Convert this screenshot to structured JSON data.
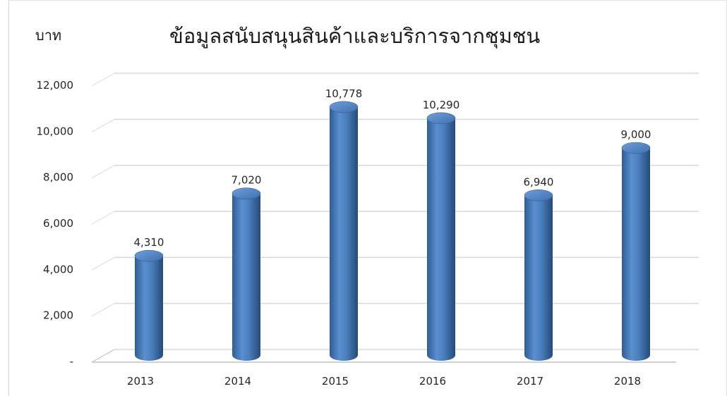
{
  "chart_data": {
    "type": "bar",
    "title": "ข้อมูลสนับสนุนสินค้าและบริการจากชุมชน",
    "ylabel": "บาท",
    "xlabel": "",
    "categories": [
      "2013",
      "2014",
      "2015",
      "2016",
      "2017",
      "2018"
    ],
    "values": [
      4310,
      7020,
      10778,
      10290,
      6940,
      9000
    ],
    "data_labels": [
      "4,310",
      "7,020",
      "10,778",
      "10,290",
      "6,940",
      "9,000"
    ],
    "ylim": [
      0,
      12000
    ],
    "yticks": [
      0,
      2000,
      4000,
      6000,
      8000,
      10000,
      12000
    ],
    "ytick_labels": [
      "-",
      "2,000",
      "4,000",
      "6,000",
      "8,000",
      "10,000",
      "12,000"
    ],
    "grid": true,
    "legend": "none",
    "bar_shape": "3d-cylinder",
    "bar_color": "#4a7ebb"
  }
}
